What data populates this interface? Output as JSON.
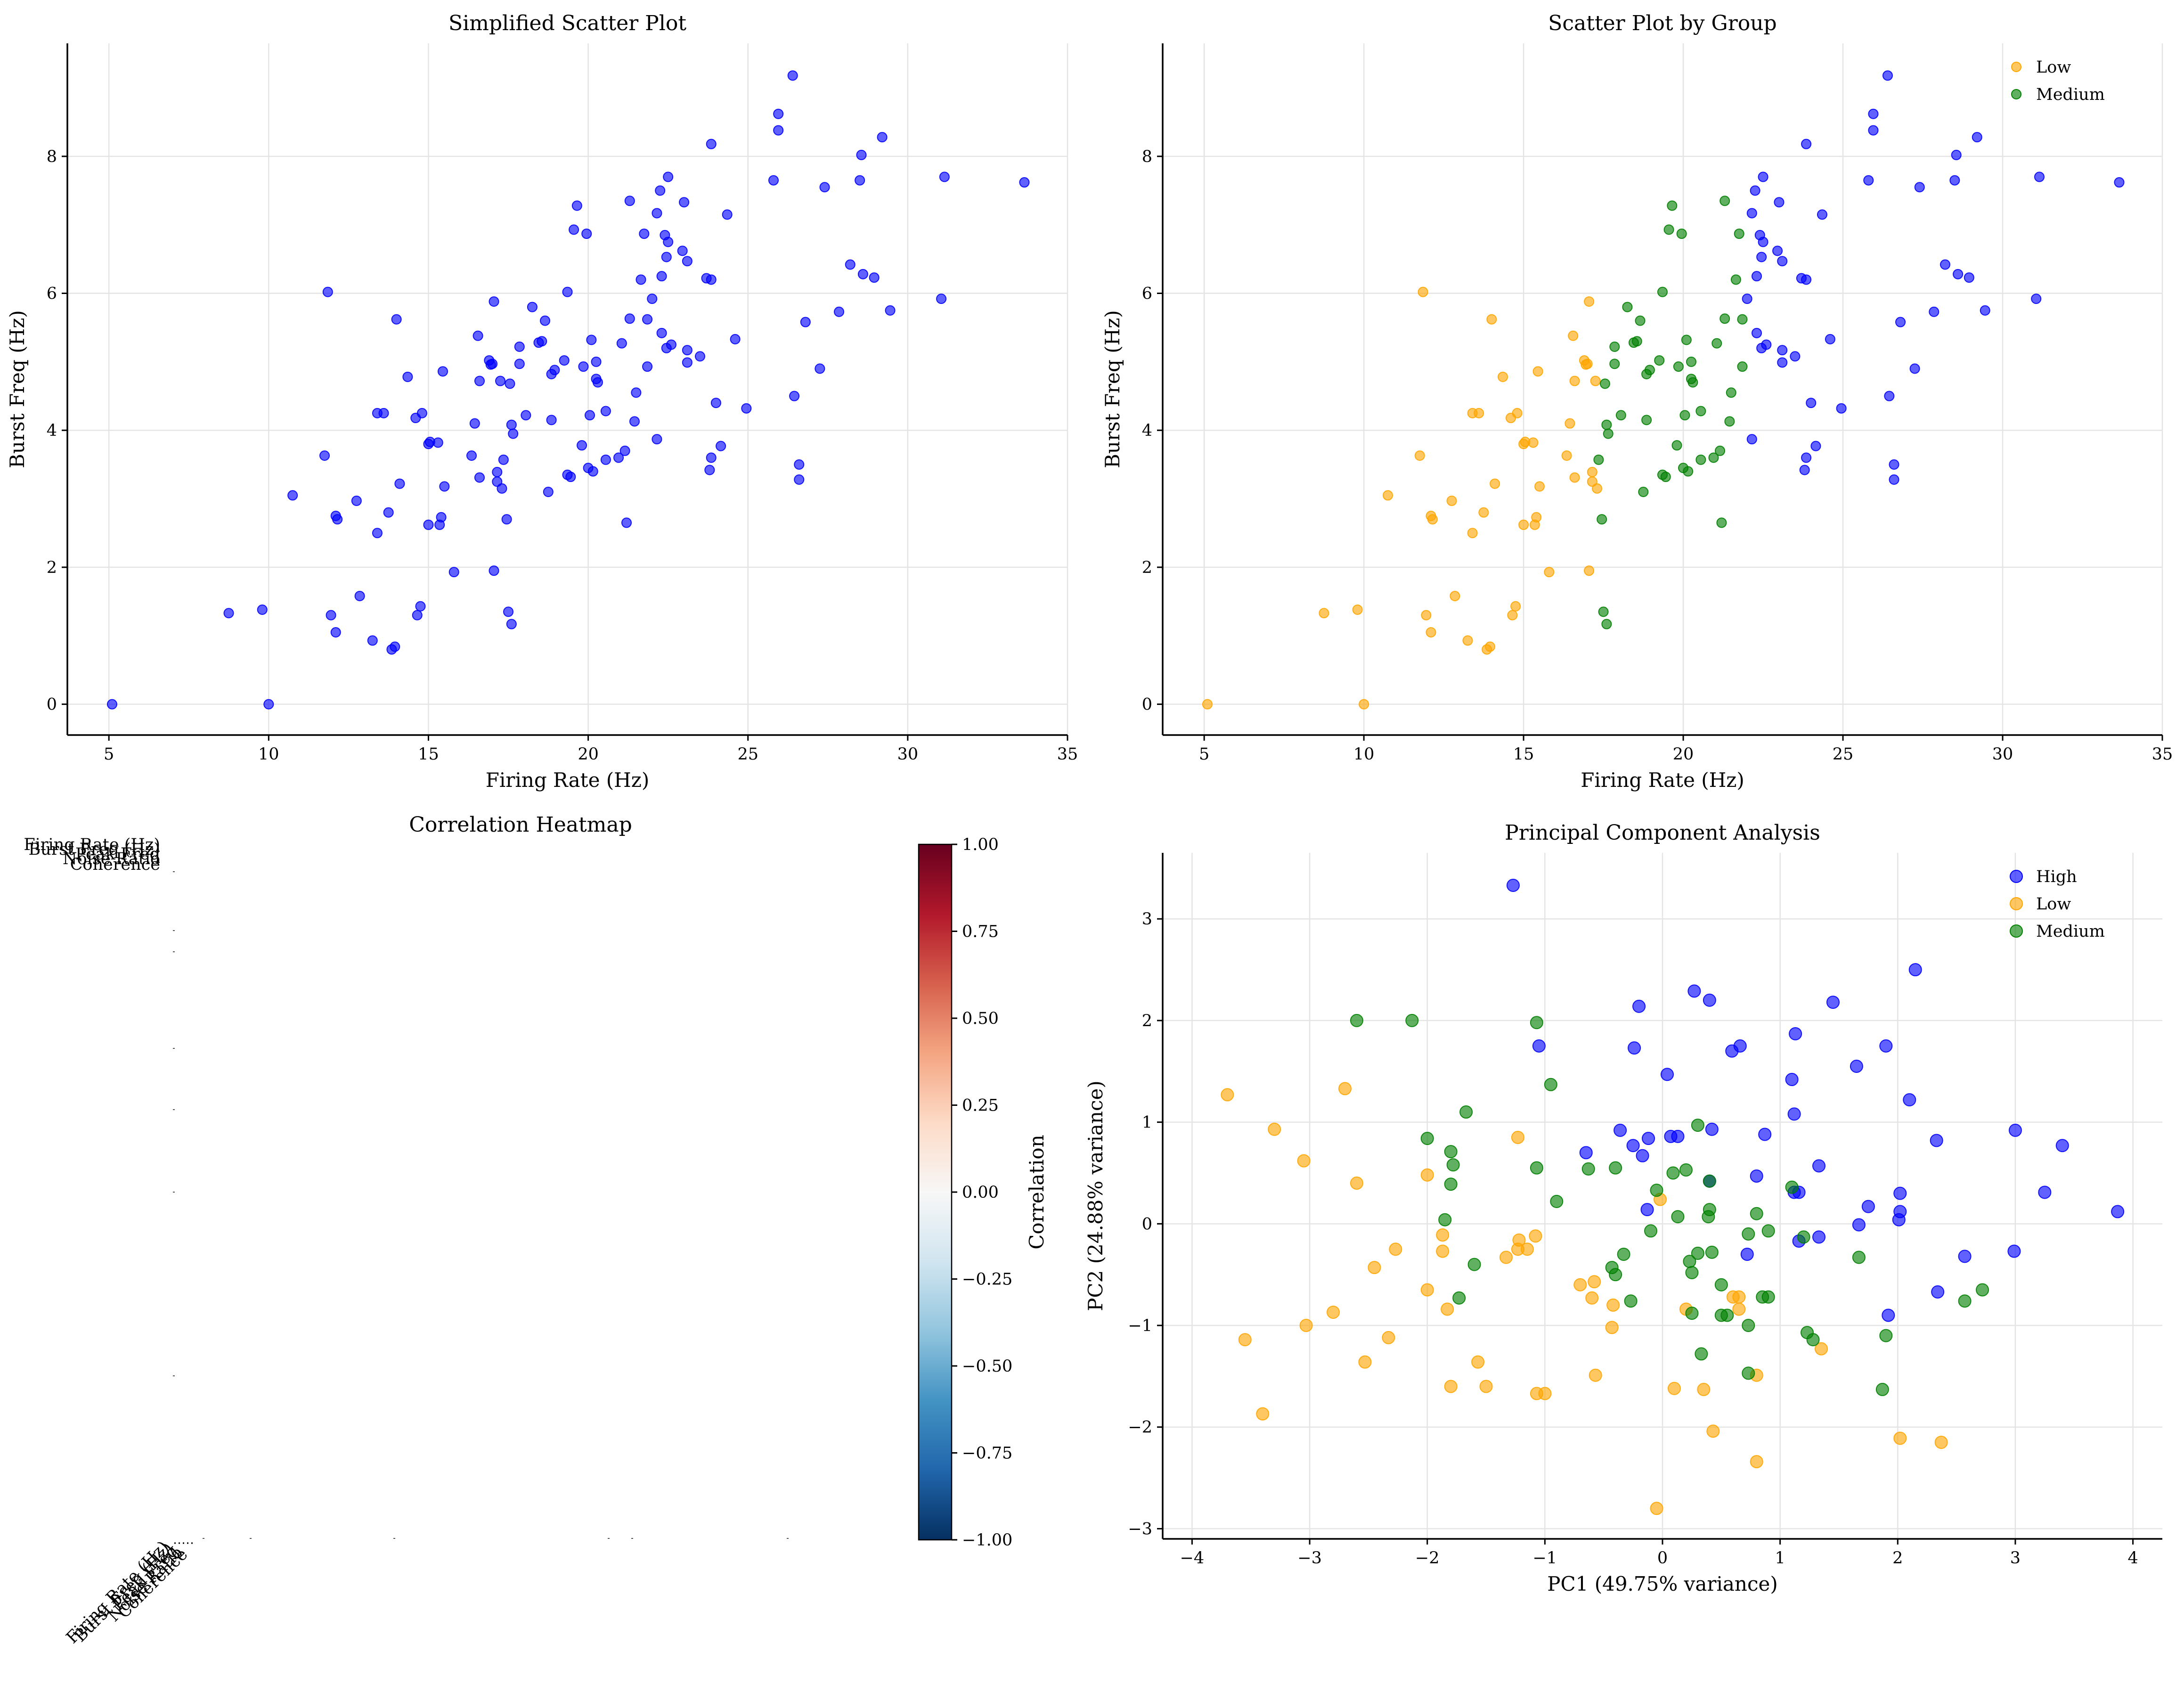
{
  "chart_data": [
    {
      "type": "scatter",
      "title": "Simplified Scatter Plot",
      "xlabel": "Firing Rate (Hz)",
      "ylabel": "Burst Freq (Hz)",
      "xlim": [
        3.7,
        35.0
      ],
      "ylim": [
        -0.45,
        9.65
      ],
      "xticks": [
        5,
        10,
        15,
        20,
        25,
        30,
        35
      ],
      "yticks": [
        0,
        2,
        4,
        6,
        8
      ],
      "grid": true,
      "legend": null,
      "colors": {
        "all": "#0000ff"
      },
      "series": [
        {
          "group": "all",
          "points": []
        }
      ]
    },
    {
      "type": "scatter",
      "title": "Scatter Plot by Group",
      "xlabel": "Firing Rate (Hz)",
      "ylabel": "Burst Freq (Hz)",
      "xlim": [
        3.7,
        35.0
      ],
      "ylim": [
        -0.45,
        9.65
      ],
      "xticks": [
        5,
        10,
        15,
        20,
        25,
        30,
        35
      ],
      "yticks": [
        0,
        2,
        4,
        6,
        8
      ],
      "grid": true,
      "legend": "top-right",
      "legend_entries": [
        "Low",
        "Medium"
      ],
      "colors": {
        "Low": "#ffa500",
        "Medium": "#008000",
        "High": "#0000ff"
      },
      "series": [
        {
          "name": "Low",
          "points": []
        },
        {
          "name": "Medium",
          "points": []
        },
        {
          "group": "High",
          "points": []
        }
      ]
    },
    {
      "type": "heatmap",
      "title": "Correlation Heatmap",
      "colorbar_label": "Correlation",
      "colorbar_ticks": [
        "1.00",
        "0.75",
        "0.50",
        "0.25",
        "0.00",
        "−0.25",
        "−0.50",
        "−0.75",
        "−1.00"
      ],
      "range": [
        -1.0,
        1.0
      ],
      "colormap": "RdBu_r",
      "row_labels": [
        "Firing Rate (Hz)",
        "Burst Freq (Hz)",
        "Peak Freq",
        "Noise Ratio",
        "Coherence"
      ],
      "col_labels": [
        "Firing Rate (Hz)",
        "Burst Freq (Hz)",
        "Peak Freq",
        "Noise Ratio",
        "Coherence"
      ]
    },
    {
      "type": "scatter",
      "title": "Principal Component Analysis",
      "xlabel": "PC1 (49.75% variance)",
      "ylabel": "PC2 (24.88% variance)",
      "xlim": [
        -4.25,
        4.25
      ],
      "ylim": [
        -3.1,
        3.65
      ],
      "xticks": [
        -4,
        -3,
        -2,
        -1,
        0,
        1,
        2,
        3,
        4
      ],
      "yticks": [
        -3,
        -2,
        -1,
        0,
        1,
        2,
        3
      ],
      "grid": true,
      "legend": "top-right",
      "legend_entries": [
        "High",
        "Low",
        "Medium"
      ],
      "colors": {
        "High": "#0000ff",
        "Low": "#ffa500",
        "Medium": "#008000"
      },
      "series": [
        {
          "name": "High",
          "points": [
            [
              -1.27,
              3.33
            ],
            [
              2.15,
              2.5
            ],
            [
              0.27,
              2.29
            ],
            [
              0.4,
              2.2
            ],
            [
              1.45,
              2.18
            ],
            [
              -0.2,
              2.14
            ],
            [
              0.66,
              1.75
            ],
            [
              0.59,
              1.7
            ],
            [
              -1.05,
              1.75
            ],
            [
              -0.24,
              1.73
            ],
            [
              1.9,
              1.75
            ],
            [
              1.13,
              1.87
            ],
            [
              1.65,
              1.55
            ],
            [
              0.04,
              1.47
            ],
            [
              1.1,
              1.42
            ],
            [
              2.1,
              1.22
            ],
            [
              1.12,
              1.08
            ],
            [
              0.87,
              0.88
            ],
            [
              -0.36,
              0.92
            ],
            [
              0.42,
              0.93
            ],
            [
              -0.12,
              0.84
            ],
            [
              0.13,
              0.86
            ],
            [
              -0.65,
              0.7
            ],
            [
              -0.25,
              0.77
            ],
            [
              0.07,
              0.86
            ],
            [
              -0.17,
              0.67
            ],
            [
              2.33,
              0.82
            ],
            [
              3.0,
              0.92
            ],
            [
              3.4,
              0.77
            ],
            [
              1.33,
              0.57
            ],
            [
              0.8,
              0.47
            ],
            [
              0.4,
              0.42
            ],
            [
              2.02,
              0.3
            ],
            [
              3.25,
              0.31
            ],
            [
              1.12,
              0.31
            ],
            [
              1.16,
              0.31
            ],
            [
              -0.13,
              0.14
            ],
            [
              1.75,
              0.17
            ],
            [
              2.02,
              0.12
            ],
            [
              2.01,
              0.04
            ],
            [
              1.67,
              -0.01
            ],
            [
              3.87,
              0.12
            ],
            [
              2.99,
              -0.27
            ],
            [
              2.57,
              -0.32
            ],
            [
              1.33,
              -0.13
            ],
            [
              1.16,
              -0.17
            ],
            [
              0.72,
              -0.3
            ],
            [
              2.34,
              -0.67
            ],
            [
              1.92,
              -0.9
            ]
          ]
        },
        {
          "name": "Low",
          "points": [
            [
              -3.7,
              1.27
            ],
            [
              -2.7,
              1.33
            ],
            [
              -3.3,
              0.93
            ],
            [
              -1.23,
              0.85
            ],
            [
              -3.05,
              0.62
            ],
            [
              -2.6,
              0.4
            ],
            [
              -2.0,
              0.48
            ],
            [
              -0.02,
              0.24
            ],
            [
              -1.87,
              -0.11
            ],
            [
              -1.08,
              -0.12
            ],
            [
              -1.22,
              -0.16
            ],
            [
              -2.27,
              -0.25
            ],
            [
              -1.23,
              -0.25
            ],
            [
              -1.15,
              -0.25
            ],
            [
              -1.87,
              -0.27
            ],
            [
              -1.33,
              -0.33
            ],
            [
              -2.45,
              -0.43
            ],
            [
              -0.58,
              -0.57
            ],
            [
              -0.7,
              -0.6
            ],
            [
              -2.0,
              -0.65
            ],
            [
              -0.6,
              -0.73
            ],
            [
              0.6,
              -0.72
            ],
            [
              0.65,
              -0.72
            ],
            [
              -0.42,
              -0.8
            ],
            [
              0.2,
              -0.84
            ],
            [
              -1.83,
              -0.84
            ],
            [
              0.65,
              -0.84
            ],
            [
              -2.8,
              -0.87
            ],
            [
              -3.03,
              -1.0
            ],
            [
              -0.43,
              -1.02
            ],
            [
              -2.33,
              -1.12
            ],
            [
              -3.55,
              -1.14
            ],
            [
              1.35,
              -1.23
            ],
            [
              -2.53,
              -1.36
            ],
            [
              -1.57,
              -1.36
            ],
            [
              -0.57,
              -1.49
            ],
            [
              0.8,
              -1.49
            ],
            [
              0.1,
              -1.62
            ],
            [
              0.35,
              -1.63
            ],
            [
              -1.8,
              -1.6
            ],
            [
              -1.5,
              -1.6
            ],
            [
              -1.07,
              -1.67
            ],
            [
              -1.0,
              -1.67
            ],
            [
              -3.4,
              -1.87
            ],
            [
              0.43,
              -2.04
            ],
            [
              2.02,
              -2.11
            ],
            [
              2.37,
              -2.15
            ],
            [
              0.8,
              -2.34
            ],
            [
              -0.05,
              -2.8
            ]
          ]
        },
        {
          "name": "Medium",
          "points": [
            [
              -2.6,
              2.0
            ],
            [
              -2.13,
              2.0
            ],
            [
              -1.07,
              1.98
            ],
            [
              -0.95,
              1.37
            ],
            [
              -1.67,
              1.1
            ],
            [
              -2.0,
              0.84
            ],
            [
              0.2,
              0.53
            ],
            [
              -1.8,
              0.71
            ],
            [
              -1.78,
              0.58
            ],
            [
              -1.07,
              0.55
            ],
            [
              -0.4,
              0.55
            ],
            [
              -0.63,
              0.54
            ],
            [
              0.09,
              0.5
            ],
            [
              -0.05,
              0.33
            ],
            [
              0.13,
              0.07
            ],
            [
              -0.9,
              0.22
            ],
            [
              0.4,
              0.14
            ],
            [
              0.4,
              0.42
            ],
            [
              0.3,
              0.97
            ],
            [
              0.39,
              0.07
            ],
            [
              1.1,
              0.36
            ],
            [
              0.8,
              0.1
            ],
            [
              -1.8,
              0.39
            ],
            [
              -1.85,
              0.04
            ],
            [
              -0.1,
              -0.07
            ],
            [
              0.9,
              -0.07
            ],
            [
              1.2,
              -0.13
            ],
            [
              0.73,
              -0.1
            ],
            [
              -0.33,
              -0.3
            ],
            [
              -0.43,
              -0.43
            ],
            [
              -0.4,
              -0.5
            ],
            [
              0.23,
              -0.37
            ],
            [
              0.3,
              -0.29
            ],
            [
              0.42,
              -0.28
            ],
            [
              0.25,
              -0.48
            ],
            [
              -0.27,
              -0.76
            ],
            [
              1.67,
              -0.33
            ],
            [
              -1.6,
              -0.4
            ],
            [
              -1.73,
              -0.73
            ],
            [
              0.5,
              -0.6
            ],
            [
              0.85,
              -0.72
            ],
            [
              0.9,
              -0.72
            ],
            [
              0.25,
              -0.88
            ],
            [
              0.5,
              -0.9
            ],
            [
              0.55,
              -0.9
            ],
            [
              0.73,
              -1.0
            ],
            [
              2.57,
              -0.76
            ],
            [
              2.72,
              -0.65
            ],
            [
              1.23,
              -1.07
            ],
            [
              1.28,
              -1.14
            ],
            [
              1.9,
              -1.1
            ],
            [
              0.33,
              -1.28
            ],
            [
              0.73,
              -1.47
            ],
            [
              1.87,
              -1.63
            ]
          ]
        }
      ]
    }
  ]
}
